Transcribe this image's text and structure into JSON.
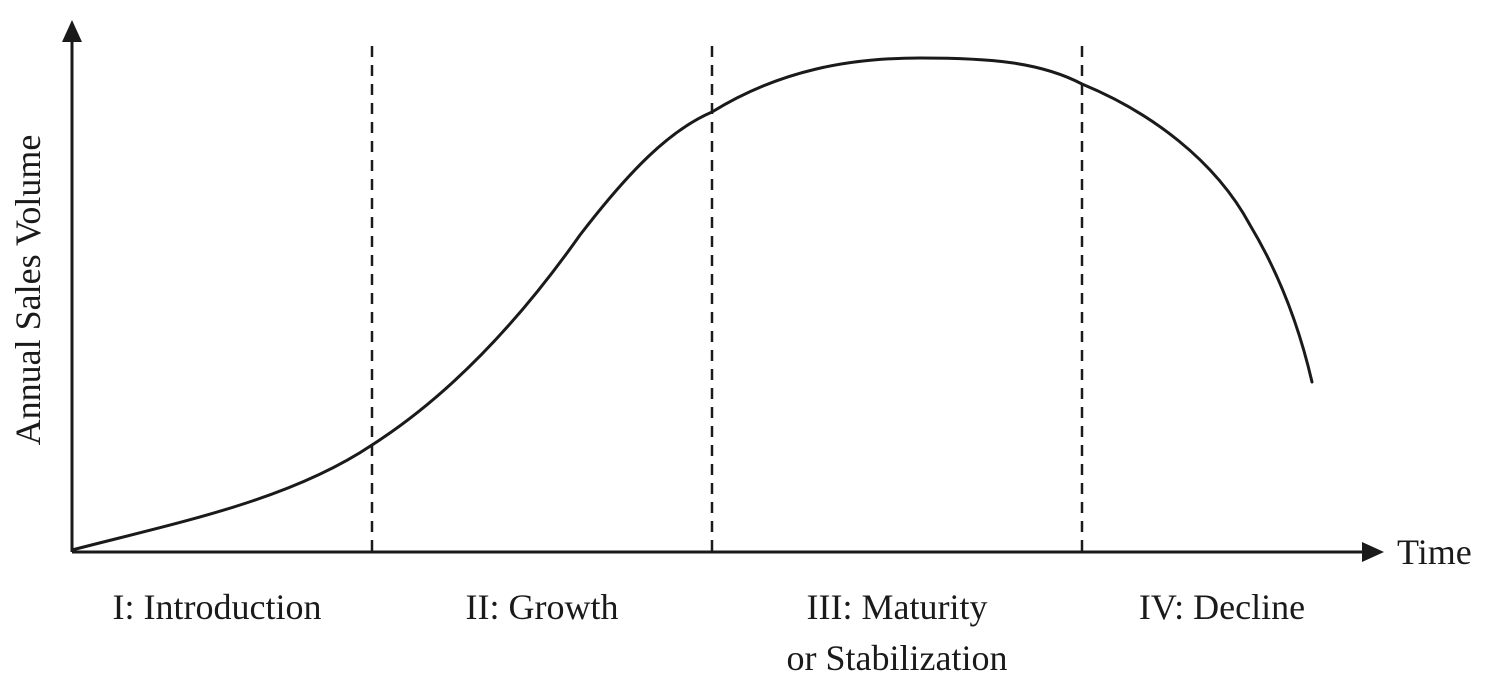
{
  "axes": {
    "y_label": "Annual Sales Volume",
    "x_label": "Time"
  },
  "stages": [
    {
      "lines": [
        "I: Introduction"
      ]
    },
    {
      "lines": [
        "II:  Growth"
      ]
    },
    {
      "lines": [
        "III:  Maturity",
        "or Stabilization"
      ]
    },
    {
      "lines": [
        "IV:  Decline"
      ]
    }
  ]
}
